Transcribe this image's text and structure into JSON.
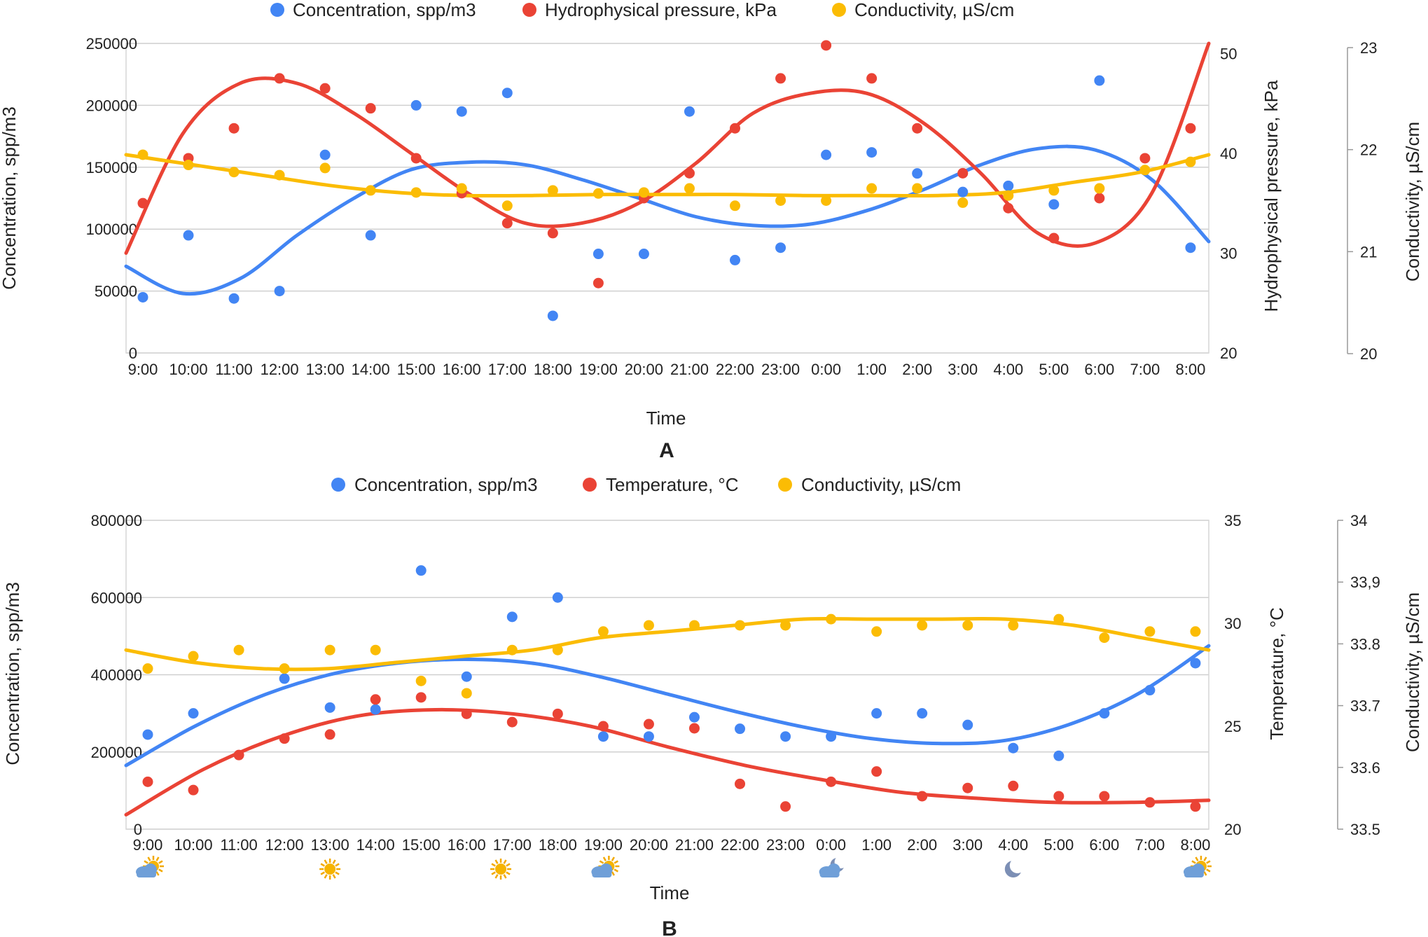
{
  "chart_data": [
    {
      "type": "scatter",
      "panel_label": "A",
      "xlabel": "Time",
      "categories": [
        "9:00",
        "10:00",
        "11:00",
        "12:00",
        "13:00",
        "14:00",
        "15:00",
        "16:00",
        "17:00",
        "18:00",
        "19:00",
        "20:00",
        "21:00",
        "22:00",
        "23:00",
        "0:00",
        "1:00",
        "2:00",
        "3:00",
        "4:00",
        "5:00",
        "6:00",
        "7:00",
        "8:00"
      ],
      "axes": {
        "left": {
          "label": "Concentration, spp/m3",
          "ylim": [
            0,
            250000
          ],
          "ticks": [
            "0",
            "50000",
            "100000",
            "150000",
            "200000",
            "250000"
          ]
        },
        "right": {
          "label": "Hydrophysical pressure, kPa",
          "ylim": [
            20,
            51
          ],
          "ticks": [
            "20",
            "30",
            "40",
            "50"
          ],
          "tick_values": [
            20,
            30,
            40,
            50
          ]
        },
        "right2": {
          "label": "Conductivity, µS/cm",
          "ylim": [
            20,
            23
          ],
          "ticks": [
            "20",
            "21",
            "22",
            "23"
          ],
          "tick_values": [
            20,
            21,
            22,
            23
          ]
        }
      },
      "series": [
        {
          "name": "Concentration, spp/m3",
          "axis": "left",
          "color": "#4285f4",
          "values": [
            45000,
            95000,
            44000,
            50000,
            160000,
            95000,
            200000,
            195000,
            210000,
            30000,
            80000,
            80000,
            195000,
            75000,
            85000,
            160000,
            162000,
            145000,
            130000,
            135000,
            120000,
            220000,
            null,
            85000
          ],
          "trend": [
            70000,
            48000,
            60000,
            95000,
            125000,
            148000,
            154000,
            152000,
            140000,
            125000,
            110000,
            103000,
            104000,
            115000,
            132000,
            152000,
            165000,
            164000,
            140000,
            90000
          ]
        },
        {
          "name": "Hydrophysical pressure, kPa",
          "axis": "right",
          "color": "#ea4335",
          "values": [
            35,
            39.5,
            42.5,
            47.5,
            46.5,
            44.5,
            39.5,
            36,
            33,
            32,
            27,
            35.5,
            38,
            42.5,
            47.5,
            50.8,
            47.5,
            42.5,
            38,
            34.5,
            31.5,
            35.5,
            39.5,
            42.5
          ],
          "trend": [
            30,
            42,
            47,
            47,
            44,
            40,
            36,
            33,
            33,
            35,
            39,
            44,
            46,
            46,
            43,
            38,
            32,
            31,
            36,
            51
          ]
        },
        {
          "name": "Conductivity, µS/cm",
          "axis": "right2",
          "color": "#fbbc04",
          "values": [
            21.95,
            21.85,
            21.78,
            21.75,
            21.82,
            21.6,
            21.58,
            21.62,
            21.45,
            21.6,
            21.57,
            21.58,
            21.62,
            21.45,
            21.5,
            21.5,
            21.62,
            21.62,
            21.48,
            21.55,
            21.6,
            21.62,
            21.8,
            21.88
          ],
          "trend": [
            21.95,
            21.85,
            21.75,
            21.65,
            21.58,
            21.55,
            21.55,
            21.56,
            21.56,
            21.56,
            21.55,
            21.55,
            21.55,
            21.58,
            21.68,
            21.78,
            21.95
          ]
        }
      ]
    },
    {
      "type": "scatter",
      "panel_label": "B",
      "xlabel": "Time",
      "categories": [
        "9:00",
        "10:00",
        "11:00",
        "12:00",
        "13:00",
        "14:00",
        "15:00",
        "16:00",
        "17:00",
        "18:00",
        "19:00",
        "20:00",
        "21:00",
        "22:00",
        "23:00",
        "0:00",
        "1:00",
        "2:00",
        "3:00",
        "4:00",
        "5:00",
        "6:00",
        "7:00",
        "8:00"
      ],
      "axes": {
        "left": {
          "label": "Concentration, spp/m3",
          "ylim": [
            0,
            800000
          ],
          "ticks": [
            "0",
            "200000",
            "400000",
            "600000",
            "800000"
          ]
        },
        "right": {
          "label": "Temperature, °C",
          "ylim": [
            20,
            35
          ],
          "ticks": [
            "20",
            "25",
            "30",
            "35"
          ],
          "tick_values": [
            20,
            25,
            30,
            35
          ]
        },
        "right2": {
          "label": "Conductivity, µS/cm",
          "ylim": [
            33.5,
            34
          ],
          "ticks": [
            "33.5",
            "33.6",
            "33.7",
            "33.8",
            "33,9",
            "34"
          ],
          "tick_values": [
            33.5,
            33.6,
            33.7,
            33.8,
            33.9,
            34
          ]
        }
      },
      "series": [
        {
          "name": "Concentration, spp/m3",
          "axis": "left",
          "color": "#4285f4",
          "values": [
            245000,
            300000,
            null,
            390000,
            315000,
            310000,
            670000,
            395000,
            550000,
            600000,
            240000,
            240000,
            290000,
            260000,
            240000,
            240000,
            300000,
            300000,
            270000,
            210000,
            190000,
            300000,
            360000,
            430000
          ],
          "trend": [
            165000,
            265000,
            345000,
            400000,
            430000,
            440000,
            430000,
            395000,
            350000,
            305000,
            265000,
            235000,
            222000,
            230000,
            275000,
            355000,
            475000
          ]
        },
        {
          "name": "Temperature, °C",
          "axis": "right",
          "color": "#ea4335",
          "values": [
            22.3,
            21.9,
            23.6,
            24.4,
            24.6,
            26.3,
            26.4,
            25.6,
            25.2,
            25.6,
            25,
            25.1,
            24.9,
            22.2,
            21.1,
            22.3,
            22.8,
            21.6,
            22,
            22.1,
            21.6,
            21.6,
            21.3,
            21.1
          ],
          "trend": [
            20.7,
            22.9,
            24.5,
            25.5,
            25.8,
            25.6,
            25,
            24,
            23.1,
            22.4,
            21.8,
            21.5,
            21.3,
            21.3,
            21.4
          ]
        },
        {
          "name": "Conductivity, µS/cm",
          "axis": "right2",
          "color": "#fbbc04",
          "values": [
            33.76,
            33.78,
            33.79,
            33.76,
            33.79,
            33.79,
            33.74,
            33.72,
            33.79,
            33.79,
            33.82,
            33.83,
            33.83,
            33.83,
            33.83,
            33.84,
            33.82,
            33.83,
            33.83,
            33.83,
            33.84,
            33.81,
            33.82,
            33.82
          ],
          "trend": [
            33.79,
            33.77,
            33.76,
            33.76,
            33.77,
            33.78,
            33.79,
            33.81,
            33.82,
            33.83,
            33.84,
            33.84,
            33.84,
            33.84,
            33.83,
            33.81,
            33.79
          ]
        }
      ],
      "weather_icons": [
        {
          "at": "9:00",
          "icon": "partly-cloudy-icon"
        },
        {
          "at": "13:00",
          "icon": "sun-icon"
        },
        {
          "at": "16:45",
          "icon": "sun-icon"
        },
        {
          "at": "19:00",
          "icon": "partly-cloudy-icon"
        },
        {
          "at": "0:00",
          "icon": "cloudy-night-icon"
        },
        {
          "at": "4:00",
          "icon": "moon-icon"
        },
        {
          "at": "8:00",
          "icon": "partly-cloudy-icon"
        }
      ]
    }
  ]
}
